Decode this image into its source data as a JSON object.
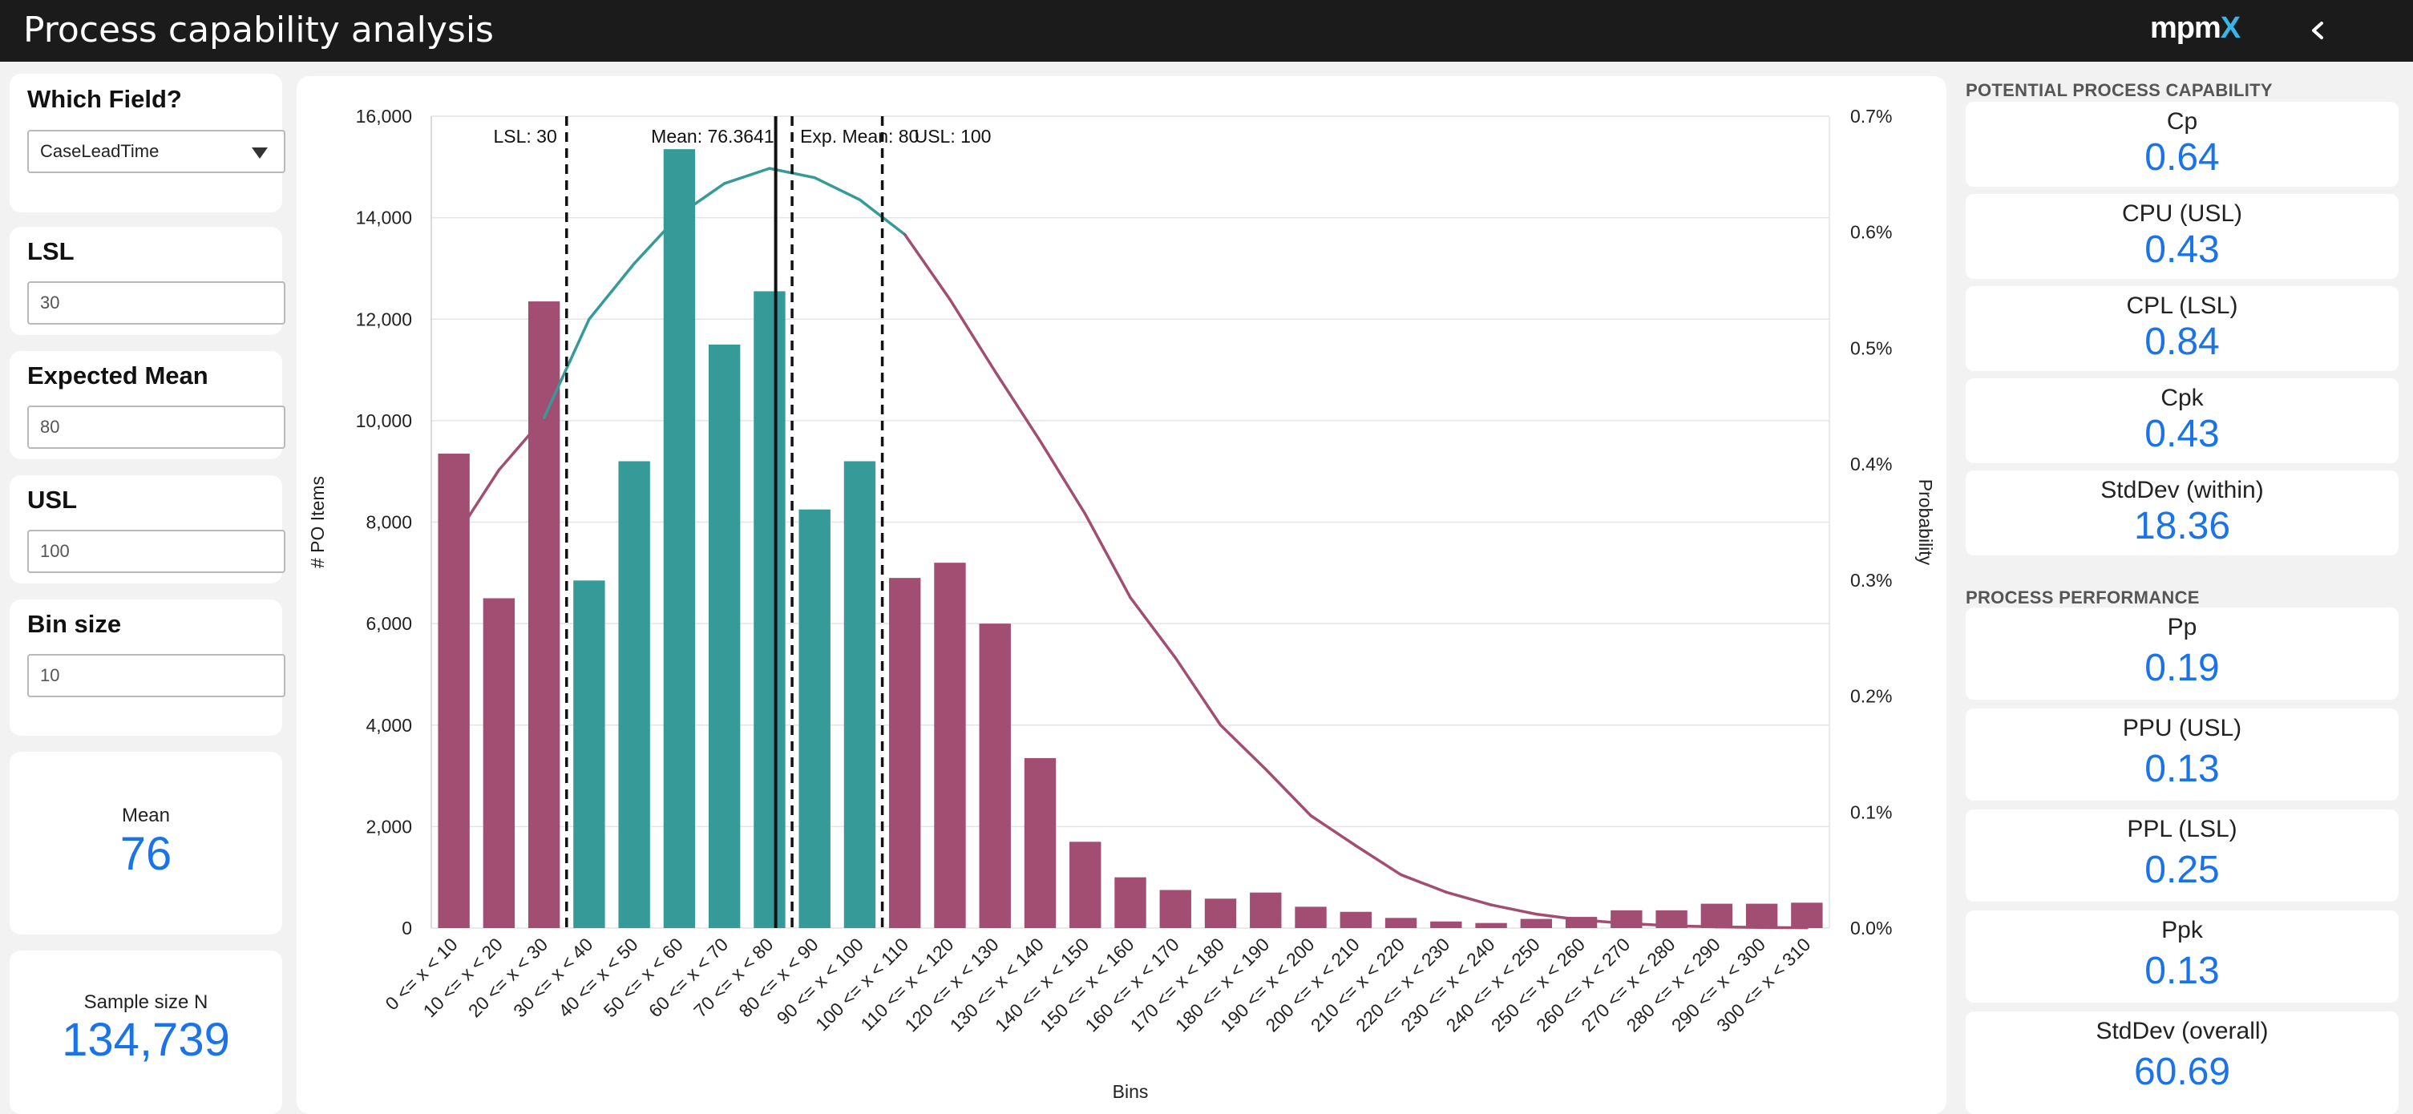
{
  "header": {
    "title": "Process capability analysis",
    "logo_text": "mpm",
    "logo_accent": "X",
    "back_icon": "chevron-left-icon"
  },
  "controls": {
    "field": {
      "label": "Which Field?",
      "value": "CaseLeadTime"
    },
    "lsl": {
      "label": "LSL",
      "value": "30"
    },
    "expected_mean": {
      "label": "Expected Mean",
      "value": "80"
    },
    "usl": {
      "label": "USL",
      "value": "100"
    },
    "bin_size": {
      "label": "Bin size",
      "value": "10"
    }
  },
  "kpis": {
    "mean": {
      "label": "Mean",
      "value": "76"
    },
    "sample": {
      "label": "Sample size N",
      "value": "134,739"
    }
  },
  "potential": {
    "title": "POTENTIAL PROCESS CAPABILITY",
    "items": [
      {
        "label": "Cp",
        "value": "0.64"
      },
      {
        "label": "CPU (USL)",
        "value": "0.43"
      },
      {
        "label": "CPL (LSL)",
        "value": "0.84"
      },
      {
        "label": "Cpk",
        "value": "0.43"
      },
      {
        "label": "StdDev (within)",
        "value": "18.36"
      }
    ]
  },
  "performance": {
    "title": "PROCESS PERFORMANCE",
    "items": [
      {
        "label": "Pp",
        "value": "0.19"
      },
      {
        "label": "PPU (USL)",
        "value": "0.13"
      },
      {
        "label": "PPL (LSL)",
        "value": "0.25"
      },
      {
        "label": "Ppk",
        "value": "0.13"
      },
      {
        "label": "StdDev (overall)",
        "value": "60.69"
      }
    ]
  },
  "chart_data": {
    "type": "bar",
    "xlabel": "Bins",
    "ylabel": "# PO Items",
    "y2label": "Probability",
    "ylim": [
      0,
      16000
    ],
    "yticks": [
      "0",
      "2,000",
      "4,000",
      "6,000",
      "8,000",
      "10,000",
      "12,000",
      "14,000",
      "16,000"
    ],
    "y2lim": [
      0,
      0.7
    ],
    "y2ticks": [
      "0.0%",
      "0.1%",
      "0.2%",
      "0.3%",
      "0.4%",
      "0.5%",
      "0.6%",
      "0.7%"
    ],
    "grid": true,
    "categories": [
      "0 <= x < 10",
      "10 <= x < 20",
      "20 <= x < 30",
      "30 <= x < 40",
      "40 <= x < 50",
      "50 <= x < 60",
      "60 <= x < 70",
      "70 <= x < 80",
      "80 <= x < 90",
      "90 <= x < 100",
      "100 <= x < 110",
      "110 <= x < 120",
      "120 <= x < 130",
      "130 <= x < 140",
      "140 <= x < 150",
      "150 <= x < 160",
      "160 <= x < 170",
      "170 <= x < 180",
      "180 <= x < 190",
      "190 <= x < 200",
      "200 <= x < 210",
      "210 <= x < 220",
      "220 <= x < 230",
      "230 <= x < 240",
      "240 <= x < 250",
      "250 <= x < 260",
      "260 <= x < 270",
      "270 <= x < 280",
      "280 <= x < 290",
      "290 <= x < 300",
      "300 <= x < 310"
    ],
    "values": [
      9350,
      6500,
      12350,
      6850,
      9200,
      15350,
      11500,
      12550,
      8250,
      9200,
      6900,
      7200,
      6000,
      3350,
      1700,
      1000,
      750,
      580,
      700,
      420,
      320,
      200,
      130,
      100,
      180,
      220,
      350,
      350,
      480,
      480,
      500
    ],
    "in_spec": [
      false,
      false,
      false,
      true,
      true,
      true,
      true,
      true,
      true,
      true,
      false,
      false,
      false,
      false,
      false,
      false,
      false,
      false,
      false,
      false,
      false,
      false,
      false,
      false,
      false,
      false,
      false,
      false,
      false,
      false,
      false
    ],
    "curve": [
      0.335,
      0.395,
      0.44,
      0.525,
      0.573,
      0.615,
      0.642,
      0.655,
      0.647,
      0.628,
      0.598,
      0.542,
      0.48,
      0.42,
      0.357,
      0.285,
      0.233,
      0.175,
      0.137,
      0.097,
      0.071,
      0.046,
      0.031,
      0.02,
      0.012,
      0.007,
      0.004,
      0.002,
      0.001,
      0.0005,
      0.0003
    ],
    "colors": {
      "in_spec": "#369b98",
      "out_of_spec": "#a24d72",
      "curve_in": "#369b98",
      "curve_out": "#a24d72",
      "grid": "#e4e4e4"
    },
    "markers": [
      {
        "label": "LSL: 30",
        "x": 30,
        "style": "dashed"
      },
      {
        "label": "Mean: 76.3641",
        "x": 76.3641,
        "style": "solid"
      },
      {
        "label": "Exp. Mean: 80",
        "x": 80,
        "style": "dashed"
      },
      {
        "label": "USL: 100",
        "x": 100,
        "style": "dashed"
      }
    ]
  }
}
